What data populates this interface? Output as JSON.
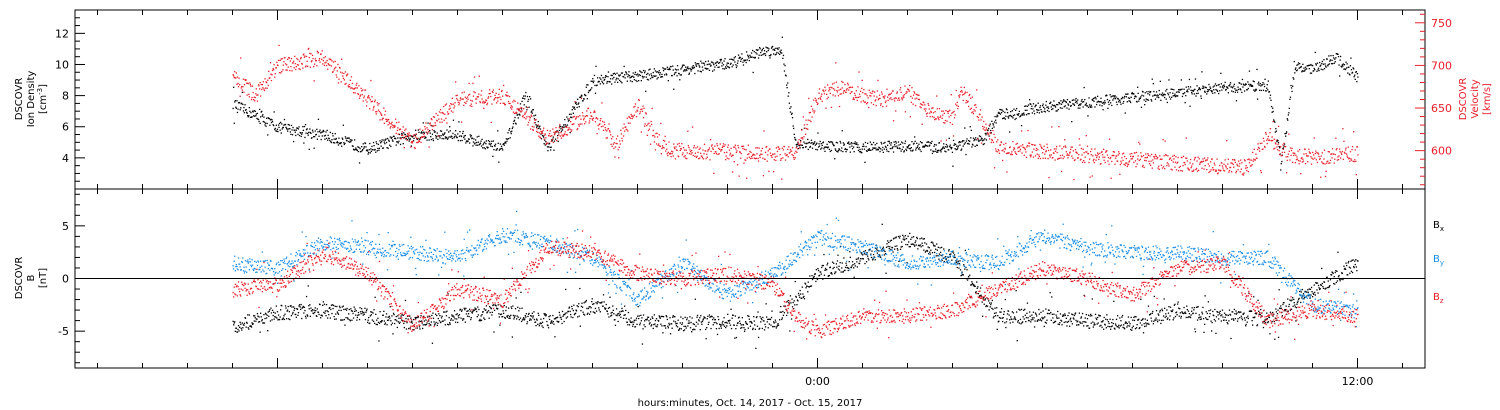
{
  "chart_data": [
    {
      "type": "scatter",
      "panel": "top",
      "y_left": {
        "label_lines": [
          "DSCOVR",
          "Ion Density"
        ],
        "unit_parts": {
          "open": "[cm",
          "sup": "-3",
          "close": "]"
        },
        "range": [
          2.0,
          13.5
        ],
        "ticks": [
          4,
          6,
          8,
          10,
          12
        ],
        "tick_labels": [
          "4",
          "6",
          "8",
          "10",
          "12"
        ]
      },
      "y_right": {
        "label_lines": [
          "DSCOVR",
          "Velocity",
          "[km/s]"
        ],
        "range": [
          555,
          765
        ],
        "ticks": [
          600,
          650,
          700,
          750
        ],
        "tick_labels": [
          "600",
          "650",
          "700",
          "750"
        ],
        "color": "#e8202a"
      },
      "series": [
        {
          "color": "#000000",
          "axis": "left",
          "x_hours": [
            -13,
            -12,
            -11,
            -10,
            -9,
            -8,
            -7,
            -6.5,
            -6,
            -5,
            -4,
            -3,
            -2,
            -1.6,
            -1.2,
            -0.8,
            -0.5,
            0,
            1,
            2,
            3,
            3.7,
            4,
            4.5,
            5,
            6,
            7,
            8,
            9,
            10,
            10.3,
            10.6,
            11,
            11.5,
            12
          ],
          "y": [
            7.5,
            6.0,
            5.5,
            4.6,
            5.5,
            5.5,
            4.6,
            8.0,
            4.6,
            9.0,
            9.3,
            9.7,
            10.1,
            10.5,
            10.9,
            11.0,
            5.0,
            4.8,
            4.7,
            4.8,
            4.7,
            5.2,
            6.8,
            7.0,
            7.3,
            7.6,
            7.9,
            8.2,
            8.5,
            8.7,
            3.7,
            10.0,
            9.7,
            10.5,
            9.2
          ]
        },
        {
          "color": "#e8202a",
          "axis": "right",
          "x_hours": [
            -13,
            -12.5,
            -12,
            -11,
            -10,
            -9,
            -8,
            -7,
            -6,
            -5,
            -4.5,
            -4,
            -3.5,
            -3,
            -2,
            -1.5,
            -1,
            -0.5,
            0,
            0.5,
            1,
            1.5,
            2,
            2.5,
            3,
            3.2,
            3.5,
            4,
            5,
            6,
            7,
            8,
            9,
            9.5,
            10,
            10.5,
            11,
            12
          ],
          "y": [
            690,
            665,
            700,
            710,
            660,
            610,
            660,
            665,
            615,
            645,
            605,
            655,
            605,
            600,
            600,
            598,
            596,
            598,
            665,
            675,
            665,
            660,
            670,
            645,
            640,
            670,
            650,
            605,
            600,
            595,
            590,
            586,
            582,
            581,
            615,
            595,
            593,
            597
          ]
        }
      ]
    },
    {
      "type": "scatter",
      "panel": "bottom",
      "y_left": {
        "label_lines": [
          "DSCOVR",
          "B"
        ],
        "unit": "[nT]",
        "range": [
          -8.5,
          8.5
        ],
        "ticks": [
          -5,
          0,
          5
        ],
        "tick_labels": [
          "-5",
          "0",
          "5"
        ]
      },
      "zero_line": true,
      "series": [
        {
          "name_main": "B",
          "name_sub": "x",
          "color": "#000000",
          "x_hours": [
            -13,
            -12,
            -11,
            -10,
            -9,
            -8,
            -7,
            -6,
            -5,
            -4,
            -3,
            -2,
            -1,
            0,
            1,
            2,
            3,
            4,
            5,
            6,
            7,
            8,
            9,
            10,
            11,
            12
          ],
          "y": [
            -4.5,
            -3.2,
            -3.0,
            -3.5,
            -4.2,
            -3.5,
            -3.0,
            -4.0,
            -2.5,
            -4.0,
            -4.2,
            -4.0,
            -4.3,
            0.5,
            2.0,
            3.8,
            2.0,
            -3.5,
            -3.5,
            -4.0,
            -4.2,
            -3.0,
            -3.5,
            -3.8,
            -1.0,
            1.5
          ]
        },
        {
          "name_main": "B",
          "name_sub": "y",
          "color": "#1a8ee6",
          "x_hours": [
            -13,
            -12,
            -11,
            -10,
            -9,
            -8,
            -7,
            -6,
            -5,
            -4,
            -3,
            -2,
            -1,
            0,
            1,
            2,
            3,
            4,
            5,
            6,
            7,
            8,
            9,
            10,
            11,
            12
          ],
          "y": [
            1.5,
            1.0,
            3.5,
            3.0,
            2.5,
            2.0,
            4.2,
            3.5,
            2.0,
            -2.0,
            1.5,
            -1.5,
            0.5,
            4.0,
            3.0,
            1.5,
            2.0,
            1.5,
            4.0,
            3.0,
            2.5,
            2.5,
            2.0,
            2.0,
            -2.5,
            -3.0
          ]
        },
        {
          "name_main": "B",
          "name_sub": "z",
          "color": "#e8202a",
          "x_hours": [
            -13,
            -12,
            -11,
            -10,
            -9,
            -8,
            -7,
            -6,
            -5,
            -4,
            -3,
            -2,
            -1,
            -0.5,
            0,
            1,
            2,
            3,
            4,
            5,
            6,
            7,
            8,
            9,
            10,
            11,
            12
          ],
          "y": [
            -1.0,
            -0.5,
            2.5,
            0.5,
            -4.5,
            -1.0,
            -2.0,
            3.0,
            2.5,
            0.5,
            0.0,
            0.5,
            -0.5,
            -3.5,
            -5.0,
            -3.5,
            -3.5,
            -3.0,
            -1.0,
            1.0,
            0.0,
            -1.5,
            1.0,
            1.5,
            -4.0,
            -3.0,
            -3.5
          ]
        }
      ]
    }
  ],
  "x_axis": {
    "range_hours": [
      -16.5,
      13.5
    ],
    "major_ticks": [
      0,
      12
    ],
    "tick_labels": [
      "0:00",
      "12:00"
    ],
    "label": "hours:minutes, Oct. 14, 2017 - Oct. 15, 2017"
  },
  "colors": {
    "black": "#000000",
    "red": "#e8202a",
    "blue": "#1a8ee6"
  }
}
